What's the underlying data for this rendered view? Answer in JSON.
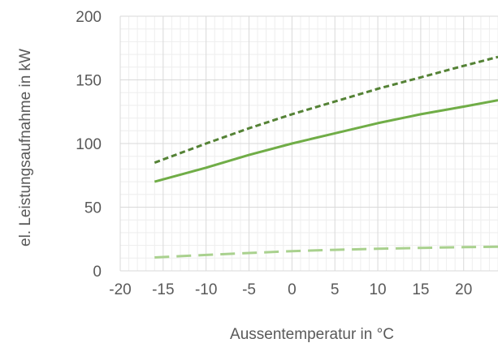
{
  "chart_data": {
    "type": "line",
    "title": "",
    "xlabel": "Aussentemperatur in °C",
    "ylabel": "el. Leistungsaufnahme in kW",
    "xlim": [
      -20,
      24
    ],
    "ylim": [
      0,
      200
    ],
    "x_ticks": [
      "-20",
      "-15",
      "-10",
      "-5",
      "0",
      "5",
      "10",
      "15",
      "20"
    ],
    "y_ticks": [
      "0",
      "50",
      "100",
      "150",
      "200"
    ],
    "grid": true,
    "minor_grid": true,
    "legend": "none",
    "series": [
      {
        "color": "#548235",
        "style": "short-dash",
        "x": [
          -16,
          -10,
          -5,
          0,
          5,
          10,
          15,
          20,
          24
        ],
        "y": [
          85,
          100,
          112,
          123,
          133,
          143,
          152,
          161,
          168
        ]
      },
      {
        "color": "#70AD47",
        "style": "solid",
        "x": [
          -16,
          -10,
          -5,
          0,
          5,
          10,
          15,
          20,
          24
        ],
        "y": [
          70,
          81,
          91,
          100,
          108,
          116,
          123,
          129,
          134
        ]
      },
      {
        "color": "#A9D18E",
        "style": "long-dash",
        "x": [
          -16,
          -10,
          -5,
          0,
          5,
          10,
          15,
          20,
          24
        ],
        "y": [
          10.5,
          12.5,
          14,
          15.5,
          16.5,
          17.3,
          18,
          18.6,
          19
        ]
      }
    ]
  }
}
